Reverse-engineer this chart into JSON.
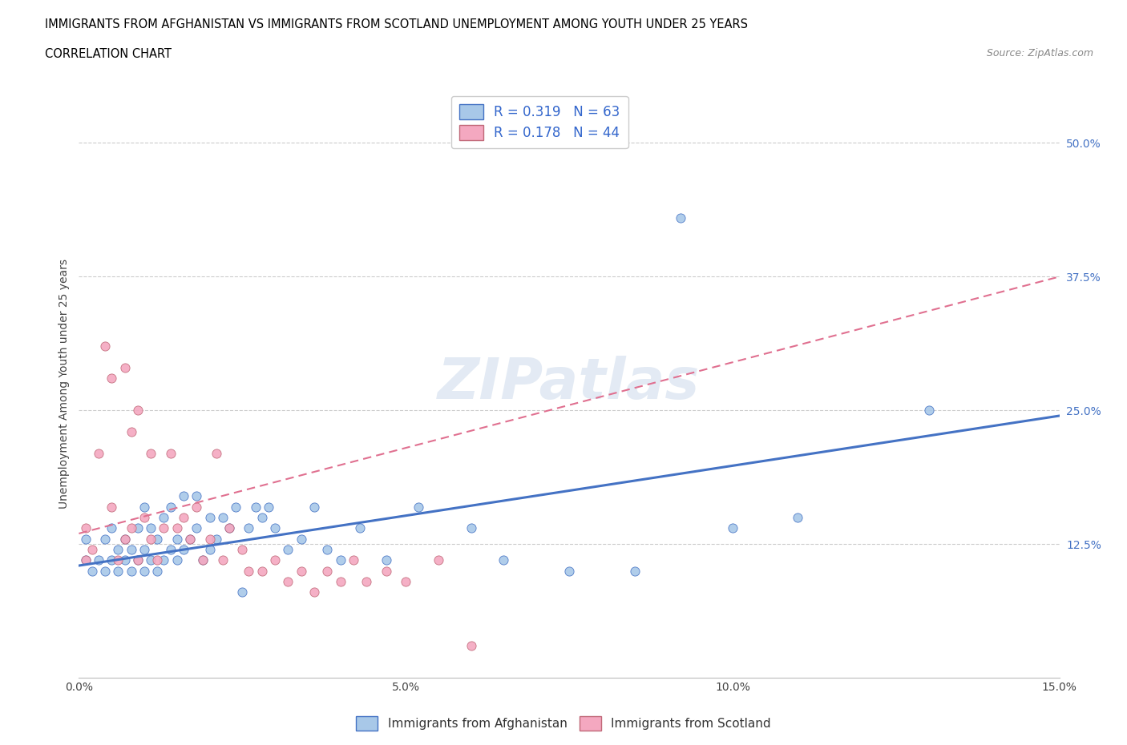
{
  "title_line1": "IMMIGRANTS FROM AFGHANISTAN VS IMMIGRANTS FROM SCOTLAND UNEMPLOYMENT AMONG YOUTH UNDER 25 YEARS",
  "title_line2": "CORRELATION CHART",
  "source": "Source: ZipAtlas.com",
  "ylabel": "Unemployment Among Youth under 25 years",
  "xlim": [
    0.0,
    0.15
  ],
  "ylim": [
    0.0,
    0.55
  ],
  "xticks": [
    0.0,
    0.05,
    0.1,
    0.15
  ],
  "xtick_labels": [
    "0.0%",
    "5.0%",
    "10.0%",
    "15.0%"
  ],
  "yticks": [
    0.0,
    0.125,
    0.25,
    0.375,
    0.5
  ],
  "ytick_labels": [
    "",
    "12.5%",
    "25.0%",
    "37.5%",
    "50.0%"
  ],
  "afghanistan_color": "#a8c8e8",
  "scotland_color": "#f4a8c0",
  "afghanistan_line_color": "#4472c4",
  "scotland_line_color": "#e07090",
  "R_afghanistan": 0.319,
  "N_afghanistan": 63,
  "R_scotland": 0.178,
  "N_scotland": 44,
  "watermark": "ZIPatlas",
  "grid_color": "#cccccc",
  "afghanistan_scatter_x": [
    0.001,
    0.001,
    0.002,
    0.003,
    0.004,
    0.004,
    0.005,
    0.005,
    0.006,
    0.006,
    0.007,
    0.007,
    0.008,
    0.008,
    0.009,
    0.009,
    0.01,
    0.01,
    0.01,
    0.011,
    0.011,
    0.012,
    0.012,
    0.013,
    0.013,
    0.014,
    0.014,
    0.015,
    0.015,
    0.016,
    0.016,
    0.017,
    0.018,
    0.018,
    0.019,
    0.02,
    0.02,
    0.021,
    0.022,
    0.023,
    0.024,
    0.025,
    0.026,
    0.027,
    0.028,
    0.029,
    0.03,
    0.032,
    0.034,
    0.036,
    0.038,
    0.04,
    0.043,
    0.047,
    0.052,
    0.06,
    0.065,
    0.075,
    0.085,
    0.092,
    0.1,
    0.11,
    0.13
  ],
  "afghanistan_scatter_y": [
    0.11,
    0.13,
    0.1,
    0.11,
    0.1,
    0.13,
    0.11,
    0.14,
    0.1,
    0.12,
    0.11,
    0.13,
    0.1,
    0.12,
    0.11,
    0.14,
    0.1,
    0.12,
    0.16,
    0.11,
    0.14,
    0.1,
    0.13,
    0.11,
    0.15,
    0.12,
    0.16,
    0.11,
    0.13,
    0.12,
    0.17,
    0.13,
    0.14,
    0.17,
    0.11,
    0.12,
    0.15,
    0.13,
    0.15,
    0.14,
    0.16,
    0.08,
    0.14,
    0.16,
    0.15,
    0.16,
    0.14,
    0.12,
    0.13,
    0.16,
    0.12,
    0.11,
    0.14,
    0.11,
    0.16,
    0.14,
    0.11,
    0.1,
    0.1,
    0.43,
    0.14,
    0.15,
    0.25
  ],
  "scotland_scatter_x": [
    0.001,
    0.001,
    0.002,
    0.003,
    0.004,
    0.005,
    0.005,
    0.006,
    0.007,
    0.007,
    0.008,
    0.008,
    0.009,
    0.009,
    0.01,
    0.011,
    0.011,
    0.012,
    0.013,
    0.014,
    0.015,
    0.016,
    0.017,
    0.018,
    0.019,
    0.02,
    0.021,
    0.022,
    0.023,
    0.025,
    0.026,
    0.028,
    0.03,
    0.032,
    0.034,
    0.036,
    0.038,
    0.04,
    0.042,
    0.044,
    0.047,
    0.05,
    0.055,
    0.06
  ],
  "scotland_scatter_y": [
    0.11,
    0.14,
    0.12,
    0.21,
    0.31,
    0.16,
    0.28,
    0.11,
    0.13,
    0.29,
    0.14,
    0.23,
    0.25,
    0.11,
    0.15,
    0.13,
    0.21,
    0.11,
    0.14,
    0.21,
    0.14,
    0.15,
    0.13,
    0.16,
    0.11,
    0.13,
    0.21,
    0.11,
    0.14,
    0.12,
    0.1,
    0.1,
    0.11,
    0.09,
    0.1,
    0.08,
    0.1,
    0.09,
    0.11,
    0.09,
    0.1,
    0.09,
    0.11,
    0.03
  ],
  "afghanistan_trendline_x": [
    0.0,
    0.15
  ],
  "afghanistan_trendline_y": [
    0.105,
    0.245
  ],
  "scotland_trendline_x": [
    0.0,
    0.15
  ],
  "scotland_trendline_y": [
    0.135,
    0.375
  ]
}
